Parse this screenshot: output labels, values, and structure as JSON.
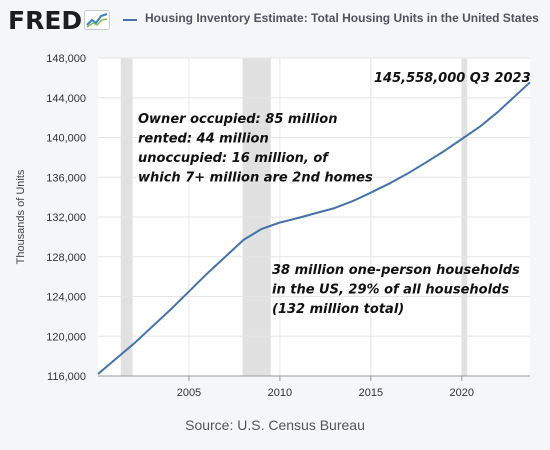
{
  "logo": {
    "text": "FRED"
  },
  "chart_data": {
    "type": "line",
    "title": "Housing Inventory Estimate: Total Housing Units in the United States",
    "ylabel": "Thousands of Units",
    "xlabel": "",
    "source": "Source: U.S. Census Bureau",
    "xlim": [
      2000.0,
      2023.75
    ],
    "ylim": [
      116000,
      148000
    ],
    "y_ticks": [
      116000,
      120000,
      124000,
      128000,
      132000,
      136000,
      140000,
      144000,
      148000
    ],
    "y_tick_labels": [
      "116,000",
      "120,000",
      "124,000",
      "128,000",
      "132,000",
      "136,000",
      "140,000",
      "144,000",
      "148,000"
    ],
    "x_ticks": [
      2005,
      2010,
      2015,
      2020
    ],
    "x_tick_labels": [
      "2005",
      "2010",
      "2015",
      "2020"
    ],
    "grid": true,
    "recessions": [
      [
        2001.25,
        2001.9
      ],
      [
        2007.95,
        2009.5
      ],
      [
        2020.0,
        2020.3
      ]
    ],
    "series": [
      {
        "color": "#4572a7",
        "x": [
          2000.0,
          2002.0,
          2004.0,
          2006.0,
          2008.0,
          2009.0,
          2010.0,
          2011.0,
          2012.0,
          2013.0,
          2014.0,
          2015.0,
          2016.0,
          2017.0,
          2018.0,
          2019.0,
          2020.0,
          2021.0,
          2022.0,
          2023.0,
          2023.75
        ],
        "y": [
          116200,
          119300,
          122700,
          126300,
          129700,
          130800,
          131450,
          131900,
          132400,
          132900,
          133600,
          134450,
          135350,
          136350,
          137450,
          138600,
          139850,
          141100,
          142600,
          144300,
          145558
        ]
      }
    ],
    "annotations": [
      {
        "lines": [
          "145,558,000 Q3 2023"
        ]
      },
      {
        "lines": [
          "Owner occupied: 85 million",
          "rented: 44 million",
          "unoccupied: 16 million, of",
          "which 7+ million are 2nd homes"
        ]
      },
      {
        "lines": [
          "38 million one-person households",
          "in the US, 29% of all households",
          "(132 million total)"
        ]
      }
    ]
  }
}
